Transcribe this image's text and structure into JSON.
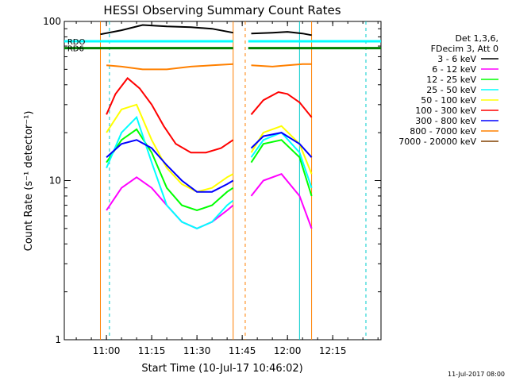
{
  "chart_data": {
    "type": "line",
    "title": "HESSI Observing Summary Count Rates",
    "xlabel": "Start Time (10-Jul-17 10:46:02)",
    "ylabel": "Count Rate (s⁻¹ detector⁻¹)",
    "y_scale": "log",
    "ylim": [
      1,
      100
    ],
    "xlim": [
      "10:46:02",
      "12:31"
    ],
    "x_ticks": [
      "11:00",
      "11:15",
      "11:30",
      "11:45",
      "12:00",
      "12:15"
    ],
    "y_ticks": [
      {
        "value": 1,
        "label": "1"
      },
      {
        "value": 10,
        "label": "10"
      },
      {
        "value": 100,
        "label": "100"
      }
    ],
    "legend_header": [
      "Det 1,3,6,",
      "FDecim 3, Att 0"
    ],
    "legend_position": "right",
    "timestamp": "11-Jul-2017 08:00",
    "state_bars": [
      {
        "name": "RDO",
        "color": "#00ffff",
        "y": 75,
        "segments": [
          [
            "10:46",
            "11:42"
          ],
          [
            "11:47",
            "12:31"
          ]
        ]
      },
      {
        "name": "RD6",
        "color": "#008000",
        "y": 68,
        "segments": [
          [
            "10:46",
            "11:42"
          ],
          [
            "11:47",
            "12:31"
          ]
        ]
      }
    ],
    "series": [
      {
        "name": "3 - 6 keV",
        "color": "#000000",
        "segments": [
          {
            "x": [
              "10:58",
              "11:05",
              "11:12",
              "11:20",
              "11:28",
              "11:35",
              "11:42"
            ],
            "y": [
              83,
              88,
              95,
              93,
              92,
              90,
              85
            ]
          },
          {
            "x": [
              "11:48",
              "11:55",
              "12:00",
              "12:05",
              "12:08"
            ],
            "y": [
              84,
              85,
              86,
              84,
              82
            ]
          }
        ]
      },
      {
        "name": "6 - 12 keV",
        "color": "#ff00ff",
        "segments": [
          {
            "x": [
              "11:00",
              "11:05",
              "11:10",
              "11:15",
              "11:20",
              "11:25",
              "11:30",
              "11:35",
              "11:40",
              "11:42"
            ],
            "y": [
              6.5,
              9,
              10.5,
              9,
              7,
              5.5,
              5,
              5.5,
              6.5,
              7
            ]
          },
          {
            "x": [
              "11:48",
              "11:52",
              "11:58",
              "12:04",
              "12:08"
            ],
            "y": [
              8,
              10,
              11,
              8,
              5
            ]
          }
        ]
      },
      {
        "name": "12 - 25 keV",
        "color": "#00ff00",
        "segments": [
          {
            "x": [
              "11:00",
              "11:05",
              "11:10",
              "11:15",
              "11:20",
              "11:25",
              "11:30",
              "11:35",
              "11:40",
              "11:42"
            ],
            "y": [
              13,
              18,
              21,
              15,
              9,
              7,
              6.5,
              7,
              8.5,
              9
            ]
          },
          {
            "x": [
              "11:48",
              "11:52",
              "11:58",
              "12:04",
              "12:08"
            ],
            "y": [
              13,
              17,
              18,
              14,
              8
            ]
          }
        ]
      },
      {
        "name": "25 - 50 keV",
        "color": "#00ffff",
        "segments": [
          {
            "x": [
              "11:00",
              "11:05",
              "11:10",
              "11:15",
              "11:20",
              "11:25",
              "11:30",
              "11:35",
              "11:40",
              "11:42"
            ],
            "y": [
              12,
              20,
              25,
              13,
              7,
              5.5,
              5,
              5.5,
              7,
              7.5
            ]
          },
          {
            "x": [
              "11:48",
              "11:52",
              "11:58",
              "12:04",
              "12:08"
            ],
            "y": [
              14,
              18,
              20,
              15,
              9
            ]
          }
        ]
      },
      {
        "name": "50 - 100 keV",
        "color": "#ffff00",
        "segments": [
          {
            "x": [
              "11:00",
              "11:05",
              "11:10",
              "11:15",
              "11:20",
              "11:25",
              "11:30",
              "11:35",
              "11:40",
              "11:42"
            ],
            "y": [
              20,
              28,
              30,
              18,
              12,
              9.5,
              8.5,
              9,
              10.5,
              11
            ]
          },
          {
            "x": [
              "11:48",
              "11:52",
              "11:58",
              "12:04",
              "12:08"
            ],
            "y": [
              15,
              20,
              22,
              17,
              11
            ]
          }
        ]
      },
      {
        "name": "100 - 300 keV",
        "color": "#ff0000",
        "segments": [
          {
            "x": [
              "11:00",
              "11:03",
              "11:07",
              "11:11",
              "11:15",
              "11:19",
              "11:23",
              "11:28",
              "11:33",
              "11:38",
              "11:42"
            ],
            "y": [
              26,
              35,
              44,
              38,
              30,
              22,
              17,
              15,
              15,
              16,
              18
            ]
          },
          {
            "x": [
              "11:48",
              "11:52",
              "11:57",
              "12:00",
              "12:04",
              "12:08"
            ],
            "y": [
              26,
              32,
              36,
              35,
              31,
              25
            ]
          }
        ]
      },
      {
        "name": "300 - 800 keV",
        "color": "#0000ff",
        "segments": [
          {
            "x": [
              "11:00",
              "11:05",
              "11:10",
              "11:15",
              "11:20",
              "11:25",
              "11:30",
              "11:35",
              "11:40",
              "11:42"
            ],
            "y": [
              14,
              17,
              18,
              16,
              12.5,
              10,
              8.5,
              8.5,
              9.5,
              10
            ]
          },
          {
            "x": [
              "11:48",
              "11:52",
              "11:58",
              "12:04",
              "12:08"
            ],
            "y": [
              16,
              19,
              20,
              17,
              14
            ]
          }
        ]
      },
      {
        "name": "800 - 7000 keV",
        "color": "#ff8000",
        "segments": [
          {
            "x": [
              "11:00",
              "11:05",
              "11:12",
              "11:20",
              "11:28",
              "11:35",
              "11:42"
            ],
            "y": [
              53,
              52,
              50,
              50,
              52,
              53,
              54
            ]
          },
          {
            "x": [
              "11:48",
              "11:55",
              "12:00",
              "12:05",
              "12:08"
            ],
            "y": [
              53,
              52,
              53,
              54,
              54
            ]
          }
        ]
      },
      {
        "name": "7000 - 20000 keV",
        "color": "#804000",
        "segments": []
      }
    ]
  }
}
